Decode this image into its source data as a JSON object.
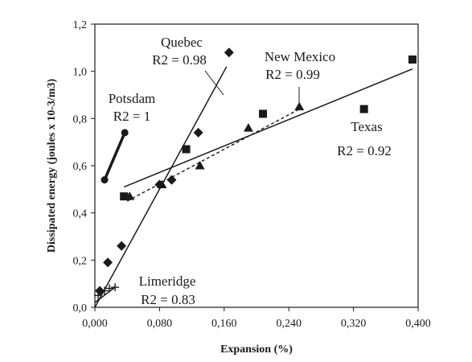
{
  "chart_data": {
    "type": "scatter",
    "title": "",
    "xlabel": "Expansion (%)",
    "ylabel": "Dissipated energy (joules x 10-3/m3)",
    "xlim": [
      0,
      0.4
    ],
    "ylim": [
      0,
      1.2
    ],
    "x_ticks": [
      "0,000",
      "0,080",
      "0,160",
      "0,240",
      "0,320",
      "0,400"
    ],
    "y_ticks": [
      "0,0",
      "0,2",
      "0,4",
      "0,6",
      "0,8",
      "1,0",
      "1,2"
    ],
    "grid": false,
    "legend": "none",
    "series": [
      {
        "name": "Potsdam",
        "marker": "circle",
        "line": "solid-thick",
        "r2_label": "R2 = 1",
        "points": [
          [
            0.012,
            0.54
          ],
          [
            0.037,
            0.74
          ]
        ],
        "trend": [
          [
            0.012,
            0.54
          ],
          [
            0.037,
            0.74
          ]
        ]
      },
      {
        "name": "Quebec",
        "marker": "diamond",
        "line": "solid",
        "r2_label": "R2 = 0.98",
        "points": [
          [
            0.006,
            0.07
          ],
          [
            0.016,
            0.19
          ],
          [
            0.033,
            0.26
          ],
          [
            0.08,
            0.52
          ],
          [
            0.095,
            0.54
          ],
          [
            0.128,
            0.74
          ],
          [
            0.166,
            1.08
          ]
        ],
        "trend": [
          [
            0.0,
            0.0
          ],
          [
            0.163,
            1.02
          ]
        ]
      },
      {
        "name": "New Mexico",
        "marker": "triangle",
        "line": "dashed",
        "r2_label": "R2 = 0.99",
        "points": [
          [
            0.043,
            0.47
          ],
          [
            0.083,
            0.52
          ],
          [
            0.13,
            0.6
          ],
          [
            0.19,
            0.76
          ],
          [
            0.253,
            0.85
          ]
        ],
        "trend": [
          [
            0.04,
            0.45
          ],
          [
            0.253,
            0.84
          ]
        ]
      },
      {
        "name": "Texas",
        "marker": "square",
        "line": "solid",
        "r2_label": "R2 = 0.92",
        "points": [
          [
            0.036,
            0.47
          ],
          [
            0.113,
            0.67
          ],
          [
            0.208,
            0.82
          ],
          [
            0.333,
            0.84
          ],
          [
            0.393,
            1.05
          ]
        ],
        "trend": [
          [
            0.036,
            0.51
          ],
          [
            0.393,
            1.01
          ]
        ]
      },
      {
        "name": "Limeridge",
        "marker": "cross",
        "line": "solid",
        "r2_label": "R2 = 0.83",
        "points": [
          [
            0.004,
            0.05
          ],
          [
            0.012,
            0.07
          ],
          [
            0.018,
            0.08
          ],
          [
            0.025,
            0.085
          ]
        ],
        "trend": [
          [
            0.0,
            0.02
          ],
          [
            0.025,
            0.085
          ]
        ]
      }
    ]
  }
}
